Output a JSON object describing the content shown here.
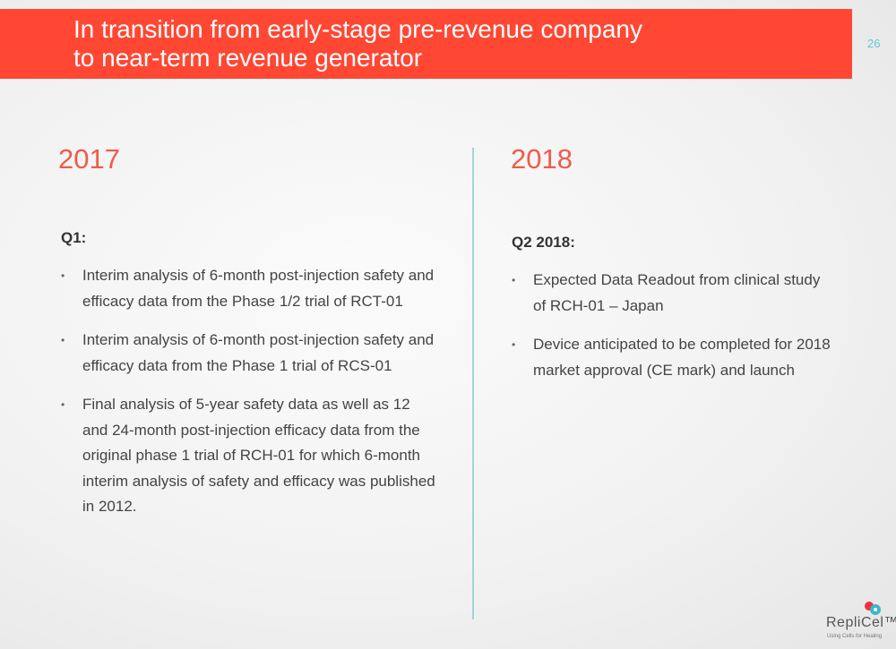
{
  "header": {
    "title": "In transition from early-stage pre-revenue company\nto near-term revenue generator",
    "page_number": "26",
    "banner_color": "#ff4733"
  },
  "left": {
    "year": "2017",
    "heading": "Q1:",
    "items": [
      "Interim analysis of 6-month post-injection safety and efficacy data from the Phase 1/2 trial of RCT-01",
      "Interim analysis of 6-month post-injection safety and efficacy data from the Phase 1 trial of RCS-01",
      "Final analysis of 5-year safety data as well as 12 and 24-month post-injection efficacy data from the original phase 1 trial of RCH-01 for which 6-month interim analysis of safety and efficacy was published in 2012."
    ]
  },
  "right": {
    "year": "2018",
    "heading": "Q2 2018:",
    "items": [
      "Expected Data Readout from clinical study of RCH-01 – Japan",
      "Device anticipated to be completed for 2018 market approval (CE mark) and launch"
    ]
  },
  "logo": {
    "name": "RepliCel™",
    "tagline": "Using Cells for Healing"
  }
}
